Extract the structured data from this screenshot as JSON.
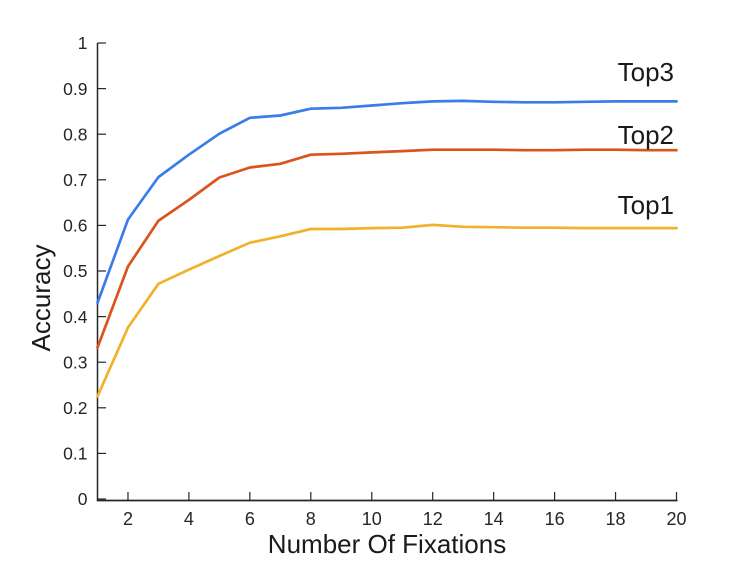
{
  "chart_data": {
    "type": "line",
    "xlabel": "Number Of Fixations",
    "ylabel": "Accuracy",
    "x": [
      1,
      2,
      3,
      4,
      5,
      6,
      7,
      8,
      9,
      10,
      11,
      12,
      13,
      14,
      15,
      16,
      17,
      18,
      19,
      20
    ],
    "xlim": [
      1,
      20
    ],
    "ylim": [
      0,
      1
    ],
    "x_ticks": [
      2,
      4,
      6,
      8,
      10,
      12,
      14,
      16,
      18,
      20
    ],
    "y_ticks": [
      0,
      0.1,
      0.2,
      0.3,
      0.4,
      0.5,
      0.6,
      0.7,
      0.8,
      0.9,
      1
    ],
    "y_tick_labels": [
      "0",
      "0.1",
      "0.2",
      "0.3",
      "0.4",
      "0.5",
      "0.6",
      "0.7",
      "0.8",
      "0.9",
      "1"
    ],
    "grid": false,
    "legend_position": "inline labels above right end of each line",
    "axis_color": "#262626",
    "tick_direction": "in",
    "series": [
      {
        "name": "Top3",
        "color": "#3b7ce9",
        "label_offset": 42,
        "values": [
          0.43,
          0.613,
          0.706,
          0.755,
          0.801,
          0.836,
          0.841,
          0.856,
          0.858,
          0.863,
          0.868,
          0.872,
          0.873,
          0.871,
          0.87,
          0.87,
          0.871,
          0.872,
          0.872,
          0.872
        ]
      },
      {
        "name": "Top2",
        "color": "#d9551d",
        "label_offset": 28,
        "values": [
          0.332,
          0.51,
          0.61,
          0.656,
          0.705,
          0.727,
          0.735,
          0.755,
          0.757,
          0.76,
          0.763,
          0.766,
          0.766,
          0.766,
          0.765,
          0.765,
          0.766,
          0.766,
          0.765,
          0.765
        ]
      },
      {
        "name": "Top1",
        "color": "#f1b22b",
        "label_offset": 36,
        "values": [
          0.225,
          0.376,
          0.472,
          0.503,
          0.533,
          0.562,
          0.576,
          0.592,
          0.592,
          0.594,
          0.595,
          0.601,
          0.597,
          0.596,
          0.595,
          0.595,
          0.594,
          0.594,
          0.594,
          0.594
        ]
      }
    ]
  }
}
